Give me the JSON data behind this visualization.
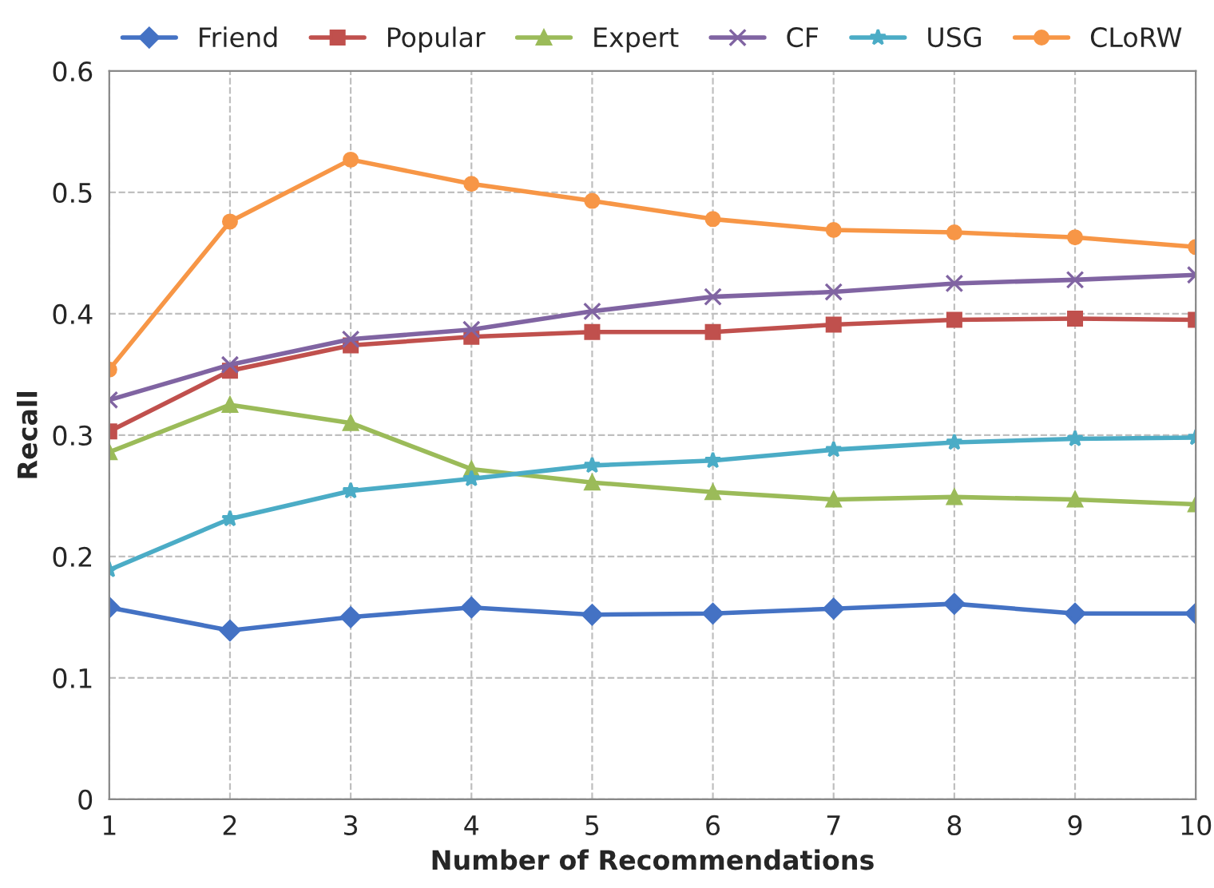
{
  "chart_data": {
    "type": "line",
    "xlabel": "Number of Recommendations",
    "ylabel": "Recall",
    "x": [
      1,
      2,
      3,
      4,
      5,
      6,
      7,
      8,
      9,
      10
    ],
    "xlim": [
      1,
      10
    ],
    "xticks": [
      1,
      2,
      3,
      4,
      5,
      6,
      7,
      8,
      9,
      10
    ],
    "ylim": [
      0,
      0.6
    ],
    "yticks": [
      0,
      0.1,
      0.2,
      0.3,
      0.4,
      0.5,
      0.6
    ],
    "grid": true,
    "legend": "top",
    "series": [
      {
        "name": "Friend",
        "color": "#4472c4",
        "marker": "diamond",
        "values": [
          0.158,
          0.139,
          0.15,
          0.158,
          0.152,
          0.153,
          0.157,
          0.161,
          0.153,
          0.153
        ]
      },
      {
        "name": "Popular",
        "color": "#c0504d",
        "marker": "square",
        "values": [
          0.303,
          0.353,
          0.374,
          0.381,
          0.385,
          0.385,
          0.391,
          0.395,
          0.396,
          0.395
        ]
      },
      {
        "name": "Expert",
        "color": "#9bbb59",
        "marker": "triangle",
        "values": [
          0.286,
          0.325,
          0.31,
          0.272,
          0.261,
          0.253,
          0.247,
          0.249,
          0.247,
          0.243
        ]
      },
      {
        "name": "CF",
        "color": "#8064a2",
        "marker": "cross",
        "values": [
          0.329,
          0.358,
          0.379,
          0.387,
          0.402,
          0.414,
          0.418,
          0.425,
          0.428,
          0.432
        ]
      },
      {
        "name": "USG",
        "color": "#4bacc6",
        "marker": "star",
        "values": [
          0.189,
          0.231,
          0.254,
          0.264,
          0.275,
          0.279,
          0.288,
          0.294,
          0.297,
          0.298
        ]
      },
      {
        "name": "CLoRW",
        "color": "#f79646",
        "marker": "circle",
        "values": [
          0.354,
          0.476,
          0.527,
          0.507,
          0.493,
          0.478,
          0.469,
          0.467,
          0.463,
          0.455
        ]
      }
    ]
  }
}
